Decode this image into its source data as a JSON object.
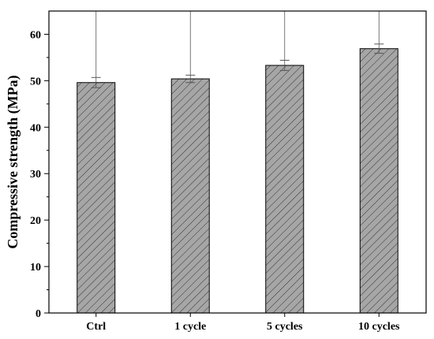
{
  "chart_data": {
    "type": "bar",
    "title": "",
    "xlabel": "",
    "ylabel": "Compressive strength (MPa)",
    "categories": [
      "Ctrl",
      "1 cycle",
      "5 cycles",
      "10 cycles"
    ],
    "values": [
      49.6,
      50.4,
      53.3,
      56.9
    ],
    "errors": [
      1.1,
      0.8,
      1.1,
      1.0
    ],
    "ylim": [
      0,
      65
    ],
    "yticks": [
      0,
      10,
      20,
      30,
      40,
      50,
      60
    ],
    "bar_fill": "hatched-gray",
    "legend": "none",
    "grid": false
  },
  "colors": {
    "bar_fill": "#a6a6a6",
    "hatch": "#333333",
    "axis": "#000000",
    "error_bar": "#555555",
    "background": "#ffffff"
  }
}
